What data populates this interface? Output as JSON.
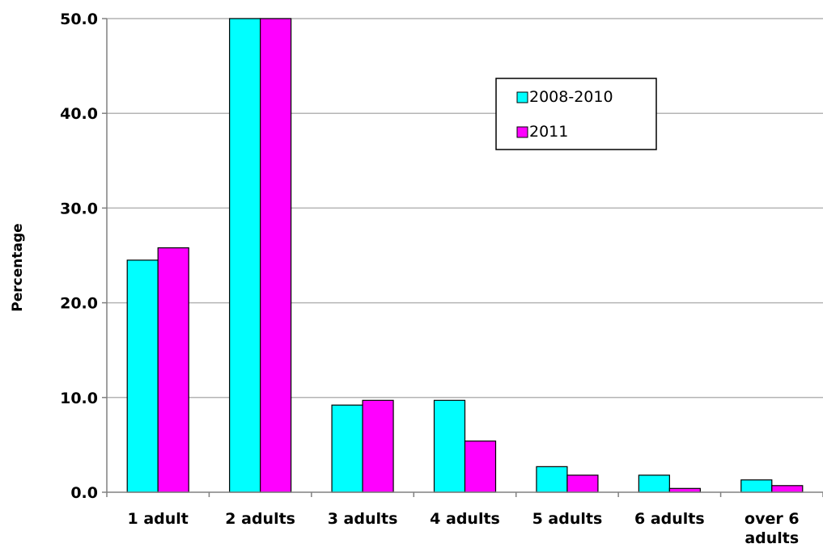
{
  "chart_data": {
    "type": "bar",
    "categories": [
      "1  adult",
      "2 adults",
      "3 adults",
      "4 adults",
      "5 adults",
      "6 adults",
      "over 6 adults"
    ],
    "series": [
      {
        "name": "2008-2010",
        "values": [
          24.5,
          50.0,
          9.2,
          9.7,
          2.7,
          1.8,
          1.3
        ],
        "color": "#00ffff"
      },
      {
        "name": "2011",
        "values": [
          25.8,
          50.0,
          9.7,
          5.4,
          1.8,
          0.4,
          0.7
        ],
        "color": "#ff00ff"
      }
    ],
    "xlabel": "",
    "ylabel": "Percentage",
    "ylim": [
      0,
      50
    ],
    "yticks": [
      "0.0",
      "10.0",
      "20.0",
      "30.0",
      "40.0",
      "50.0"
    ],
    "grid": true,
    "legend_position": "top-right"
  }
}
